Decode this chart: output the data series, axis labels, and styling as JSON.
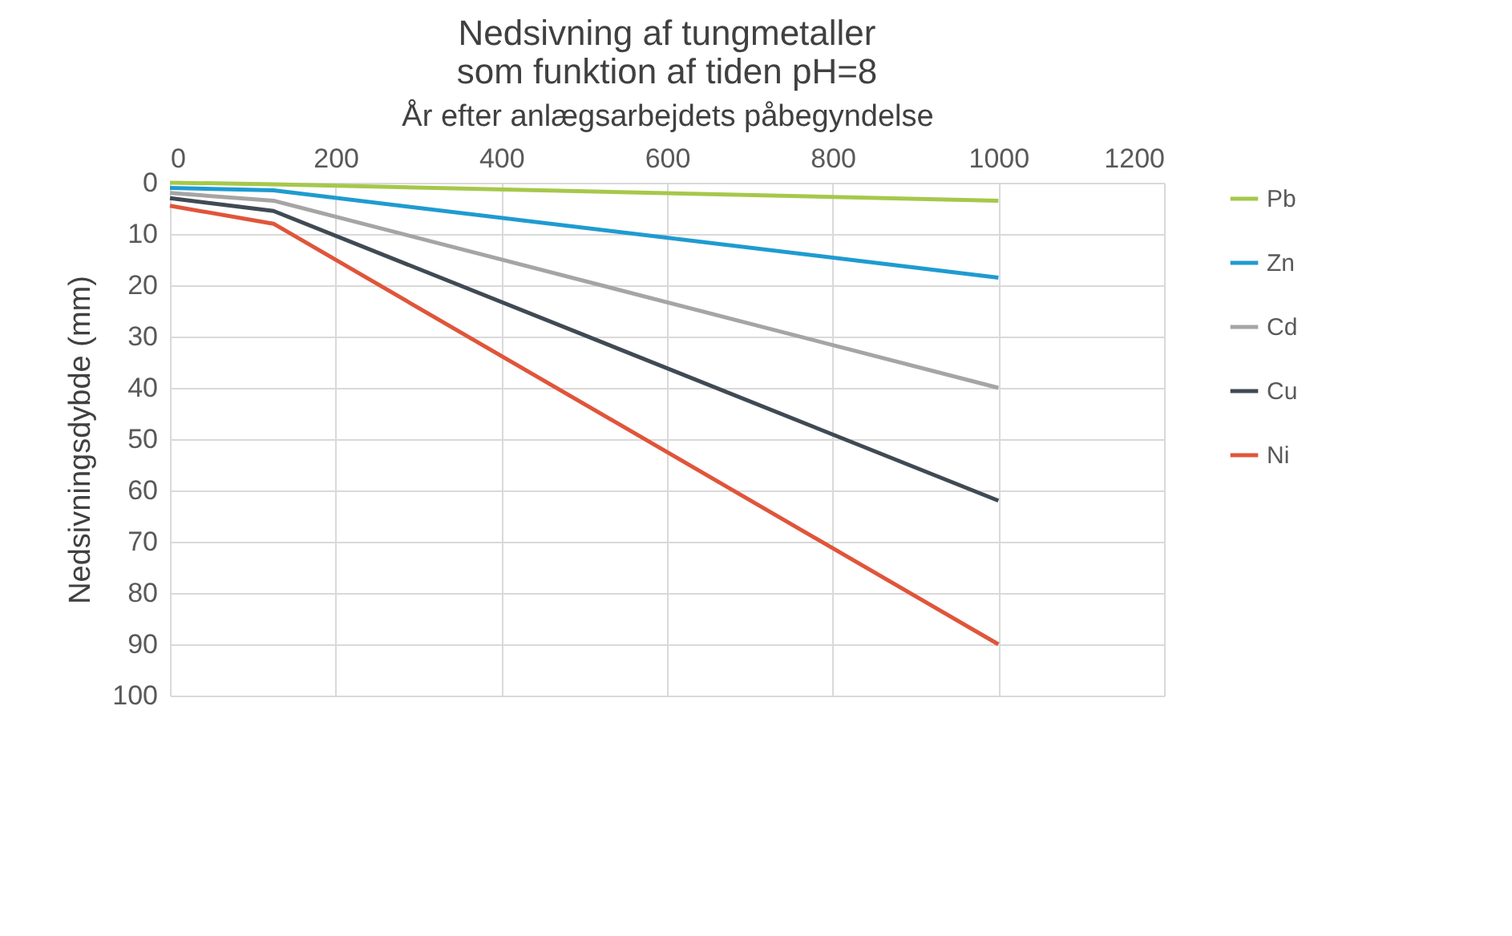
{
  "chart_data": {
    "type": "line",
    "title": "Nedsivning af tungmetaller\nsom funktion af tiden pH=8",
    "xlabel": "År efter anlægsarbejdets påbegyndelse",
    "ylabel": "Nedsivningsdybde  (mm)",
    "x": [
      0,
      125,
      1000
    ],
    "series": [
      {
        "name": "Pb",
        "color": "#a5c84a",
        "values": [
          0,
          0.3,
          3.5
        ]
      },
      {
        "name": "Zn",
        "color": "#1f9bd0",
        "values": [
          1,
          1.5,
          18.5
        ]
      },
      {
        "name": "Cd",
        "color": "#a5a5a5",
        "values": [
          2,
          3.5,
          40
        ]
      },
      {
        "name": "Cu",
        "color": "#404a54",
        "values": [
          3,
          5.5,
          62
        ]
      },
      {
        "name": "Ni",
        "color": "#e0553a",
        "values": [
          4.5,
          8,
          90
        ]
      }
    ],
    "xlim": [
      0,
      1200
    ],
    "xticks": [
      0,
      200,
      400,
      600,
      800,
      1000,
      1200
    ],
    "ylim": [
      100,
      0
    ],
    "yticks": [
      0,
      10,
      20,
      30,
      40,
      50,
      60,
      70,
      80,
      90,
      100
    ],
    "grid": true,
    "legend": "right",
    "marker": "none",
    "line_style": "solid"
  }
}
